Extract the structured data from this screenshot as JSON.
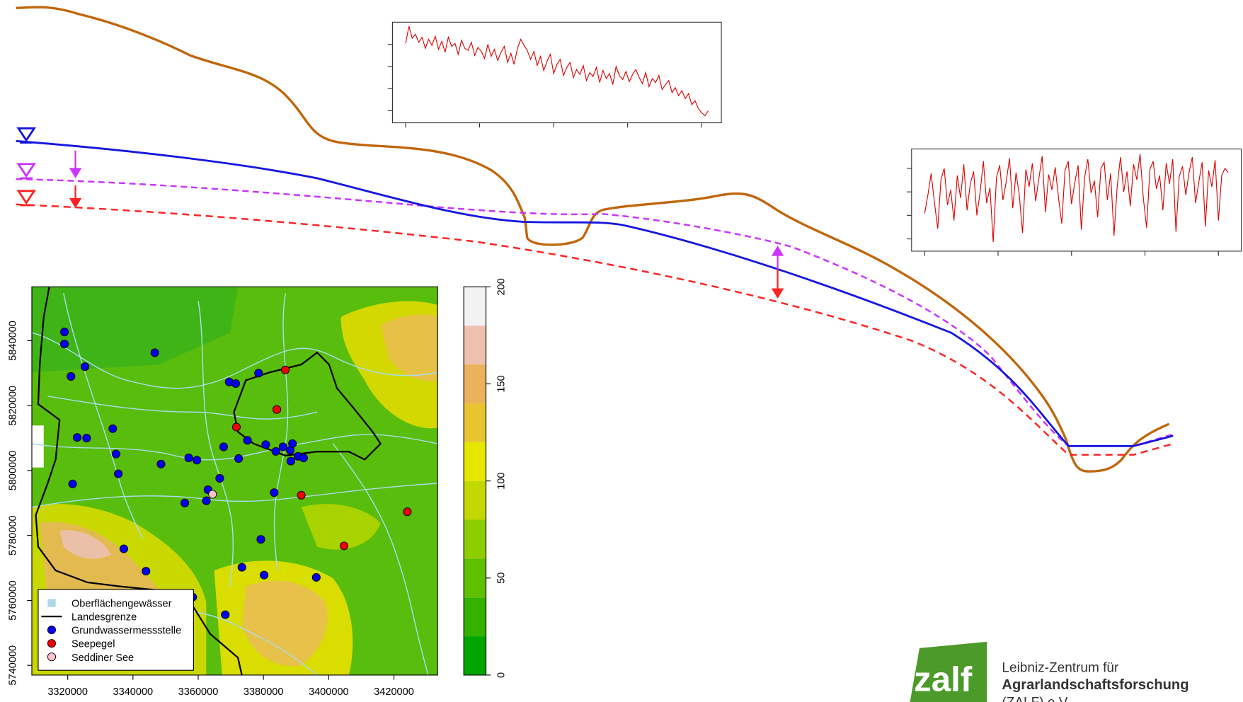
{
  "chart_data": [
    {
      "type": "line",
      "color": "#dd0000",
      "values": [
        79,
        96,
        84,
        88,
        80,
        85,
        74,
        83,
        77,
        86,
        73,
        81,
        70,
        85,
        76,
        79,
        68,
        82,
        74,
        72,
        80,
        67,
        75,
        71,
        64,
        78,
        66,
        73,
        62,
        70,
        76,
        60,
        69,
        58,
        74,
        83,
        77,
        72,
        63,
        71,
        57,
        66,
        52,
        61,
        68,
        49,
        58,
        63,
        47,
        55,
        60,
        45,
        53,
        48,
        57,
        42,
        50,
        46,
        55,
        40,
        52,
        44,
        49,
        38,
        56,
        47,
        43,
        51,
        41,
        48,
        53,
        45,
        39,
        50,
        36,
        44,
        40,
        47,
        33,
        38,
        42,
        30,
        35,
        27,
        32,
        24,
        29,
        18,
        22,
        14,
        10,
        7,
        12
      ],
      "xlim": [
        -4,
        96
      ],
      "xticks": [
        0,
        22.5,
        45,
        67.5,
        90
      ],
      "ylim": [
        0,
        100
      ],
      "yticks": [
        12,
        34,
        56,
        78
      ]
    },
    {
      "type": "line",
      "color": "#dd0000",
      "values": [
        37,
        55,
        76,
        48,
        22,
        70,
        81,
        45,
        60,
        30,
        74,
        52,
        85,
        40,
        66,
        78,
        35,
        58,
        88,
        47,
        62,
        9,
        72,
        84,
        50,
        68,
        91,
        42,
        77,
        55,
        18,
        80,
        63,
        86,
        49,
        71,
        93,
        38,
        75,
        60,
        82,
        53,
        27,
        79,
        88,
        46,
        67,
        84,
        21,
        72,
        90,
        57,
        69,
        33,
        81,
        87,
        50,
        76,
        15,
        64,
        92,
        58,
        78,
        44,
        85,
        70,
        95,
        52,
        23,
        80,
        88,
        61,
        74,
        40,
        86,
        66,
        90,
        19,
        73,
        83,
        55,
        77,
        92,
        47,
        68,
        87,
        24,
        79,
        63,
        89,
        30,
        74,
        81,
        77
      ],
      "xlim": [
        -4,
        97
      ],
      "xticks": [
        0,
        22.5,
        45,
        67.5,
        90
      ],
      "ylim": [
        0,
        100
      ],
      "yticks": [
        12,
        35,
        58,
        81
      ]
    },
    {
      "type": "scatter",
      "xlim": [
        3309000,
        3433400
      ],
      "ylim": [
        5737000,
        5856600
      ],
      "xticks": [
        3320000,
        3340000,
        3360000,
        3380000,
        3400000,
        3420000
      ],
      "yticks": [
        5740000,
        5760000,
        5780000,
        5800000,
        5820000,
        5840000
      ],
      "legend_extra": [
        {
          "name": "Oberflächengewässer",
          "color": "#add8e6"
        },
        {
          "name": "Landesgrenze",
          "color": "#000000"
        }
      ],
      "series": [
        {
          "name": "Grundwassermessstelle",
          "color": "#0000ee",
          "x": [
            3319000,
            3319000,
            3321000,
            3325300,
            3346700,
            3333800,
            3322900,
            3325800,
            3334800,
            3335500,
            3321500,
            3348600,
            3357100,
            3359600,
            3355900,
            3362500,
            3363000,
            3366600,
            3367800,
            3369500,
            3371500,
            3378500,
            3372400,
            3375100,
            3380700,
            3383800,
            3386000,
            3388200,
            3388900,
            3388400,
            3390600,
            3392300,
            3383300,
            3379200,
            3373400,
            3380200,
            3396200,
            3337200,
            3344000,
            3358300,
            3368300
          ],
          "values": [
            5842700,
            5839000,
            5829000,
            5832000,
            5836300,
            5812900,
            5810200,
            5810000,
            5805100,
            5799000,
            5795900,
            5802000,
            5803900,
            5803200,
            5790000,
            5790700,
            5794100,
            5797600,
            5807300,
            5827300,
            5826800,
            5830000,
            5803700,
            5809300,
            5808000,
            5805900,
            5807300,
            5806300,
            5808300,
            5802900,
            5804400,
            5803900,
            5793200,
            5778800,
            5770200,
            5767800,
            5767100,
            5775900,
            5769000,
            5761000,
            5755600
          ]
        },
        {
          "name": "Seepegel",
          "color": "#ee0000",
          "x": [
            3386700,
            3384100,
            3371700,
            3391600,
            3424100,
            3404700
          ],
          "values": [
            5831000,
            5818800,
            5813400,
            5792400,
            5787300,
            5776800
          ]
        },
        {
          "name": "Seddiner See",
          "color": "#ffc0cb",
          "x": [
            3364400
          ],
          "values": [
            5792700
          ]
        }
      ],
      "colorbar": {
        "breaks": [
          0,
          20,
          40,
          60,
          80,
          100,
          120,
          140,
          160,
          180,
          200
        ],
        "colors": [
          "#00a600",
          "#33b300",
          "#5fc000",
          "#8ecd00",
          "#c2d800",
          "#e6e600",
          "#e8c431",
          "#ebb25e",
          "#eec0b0",
          "#f2f2f2"
        ],
        "ticks": [
          0,
          50,
          100,
          150,
          200
        ]
      }
    }
  ],
  "logo": {
    "mark": "zalf",
    "line1": "Leibniz-Zentrum für",
    "line2": "Agrarlandschaftsforschung",
    "line3": "(ZALF) e.V."
  }
}
